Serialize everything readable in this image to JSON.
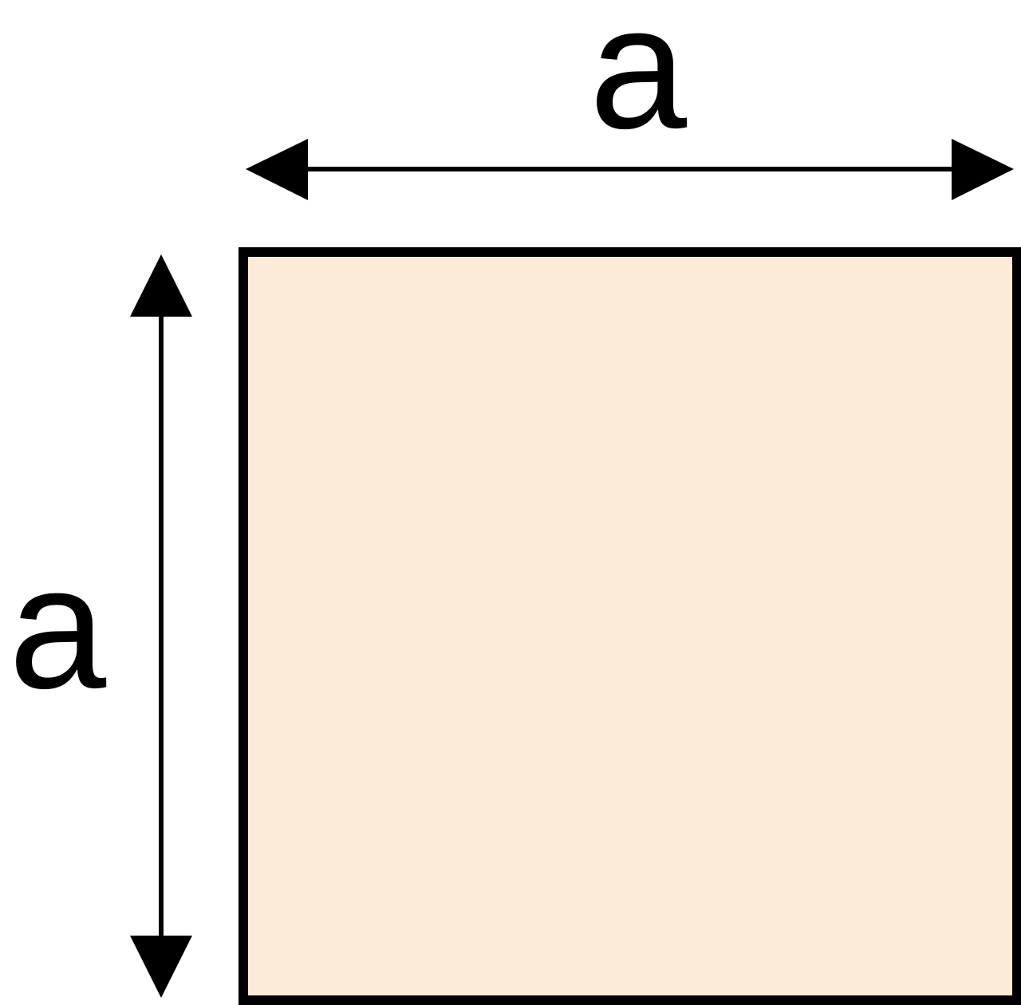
{
  "diagram": {
    "labels": {
      "top_dimension": "a",
      "left_dimension": "a"
    },
    "colors": {
      "square_fill": "#FDEBD9",
      "stroke": "#000000",
      "background": "#FFFFFF"
    }
  }
}
